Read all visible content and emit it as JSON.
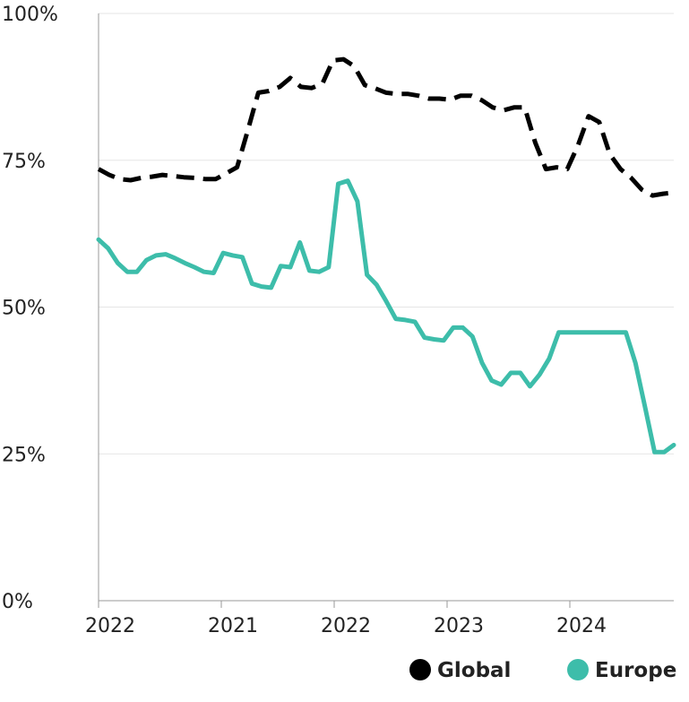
{
  "chart_data": {
    "type": "line",
    "x_tick_labels": [
      "2022",
      "2021",
      "2022",
      "2023",
      "2024"
    ],
    "y_ticks": [
      0,
      25,
      50,
      75,
      100
    ],
    "y_tick_labels": [
      "0%",
      "25%",
      "50%",
      "75%",
      "100%"
    ],
    "ylim": [
      0,
      100
    ],
    "grid": true,
    "legend_position": "bottom-right",
    "series": [
      {
        "name": "Global",
        "color": "#000000",
        "style": "dashed",
        "values": [
          73.5,
          72.5,
          71.8,
          71.6,
          72.0,
          72.2,
          72.5,
          72.3,
          72.1,
          72.0,
          71.8,
          71.8,
          72.8,
          73.8,
          80.0,
          86.5,
          86.8,
          87.5,
          89.0,
          87.5,
          87.3,
          88.0,
          92.0,
          92.2,
          91.0,
          87.8,
          87.2,
          86.5,
          86.3,
          86.3,
          86.0,
          85.5,
          85.5,
          85.3,
          86.0,
          86.0,
          85.2,
          84.0,
          83.5,
          84.0,
          84.0,
          78.0,
          73.5,
          73.8,
          73.5,
          77.5,
          82.5,
          81.5,
          76.0,
          73.5,
          72.0,
          70.0,
          69.0,
          69.3,
          69.5
        ]
      },
      {
        "name": "Europe",
        "color": "#3dbdaa",
        "style": "solid",
        "values": [
          61.5,
          60.0,
          57.5,
          56.0,
          56.0,
          58.0,
          58.8,
          59.0,
          58.3,
          57.5,
          56.8,
          56.0,
          55.8,
          59.2,
          58.8,
          58.5,
          54.0,
          53.5,
          53.3,
          57.0,
          56.8,
          61.0,
          56.2,
          56.0,
          56.8,
          71.0,
          71.5,
          68.0,
          55.5,
          53.8,
          51.0,
          48.0,
          47.8,
          47.5,
          44.8,
          44.5,
          44.3,
          46.5,
          46.5,
          45.0,
          40.5,
          37.5,
          36.8,
          38.8,
          38.8,
          36.5,
          38.5,
          41.2,
          45.7,
          45.7,
          45.7,
          45.7,
          45.7,
          45.7,
          45.7,
          45.7,
          40.5,
          33.0,
          25.3,
          25.3,
          26.5
        ]
      }
    ]
  },
  "legend": {
    "items": [
      {
        "label": "Global",
        "color": "#000000"
      },
      {
        "label": "Europe",
        "color": "#3dbdaa"
      }
    ]
  }
}
